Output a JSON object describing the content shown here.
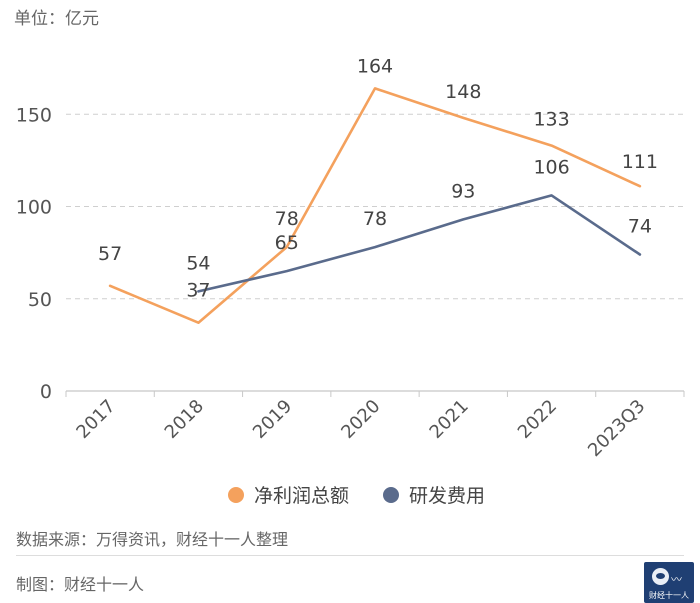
{
  "unit_label": "单位：亿元",
  "chart_data": {
    "type": "line",
    "categories": [
      "2017",
      "2018",
      "2019",
      "2020",
      "2021",
      "2022",
      "2023Q3"
    ],
    "series": [
      {
        "name": "净利润总额",
        "color": "#f4a15d",
        "values": [
          57,
          37,
          78,
          164,
          148,
          133,
          111
        ]
      },
      {
        "name": "研发费用",
        "color": "#5a6b8c",
        "values": [
          null,
          54,
          65,
          78,
          93,
          106,
          74
        ]
      }
    ],
    "yticks": [
      0,
      50,
      100,
      150
    ],
    "ylim": [
      0,
      175
    ],
    "grid": true,
    "legend": "bottom"
  },
  "source": "数据来源：万得资讯，财经十一人整理",
  "maker": "制图：财经十一人",
  "logo": {
    "text": "财经十一人"
  }
}
